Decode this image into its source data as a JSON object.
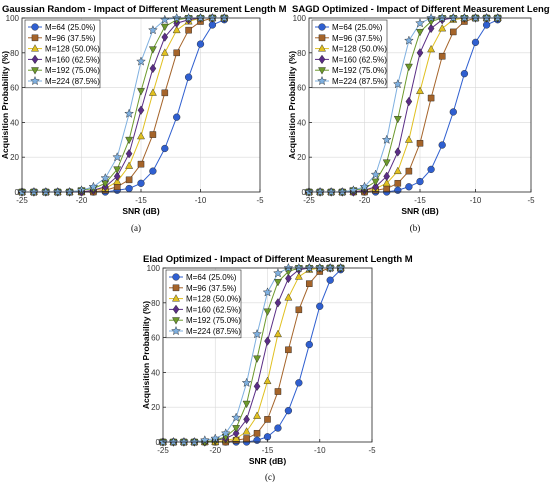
{
  "chart_data": [
    {
      "type": "line",
      "title": "Gaussian Random - Impact of Different Measurement Length M",
      "xlabel": "SNR (dB)",
      "ylabel": "Acquisition Probability (%)",
      "caption": "(a)",
      "xlim": [
        -25,
        -5
      ],
      "ylim": [
        0,
        100
      ],
      "xticks": [
        -25,
        -20,
        -15,
        -10,
        -5
      ],
      "yticks": [
        0,
        20,
        40,
        60,
        80,
        100
      ],
      "grid": true,
      "legend_position": "top-left",
      "x": [
        -25,
        -24,
        -23,
        -22,
        -21,
        -20,
        -19,
        -18,
        -17,
        -16,
        -15,
        -14,
        -13,
        -12,
        -11,
        -10,
        -9,
        -8
      ],
      "series": [
        {
          "name": "M=64 (25.0%)",
          "marker": "circle",
          "color": "#2f5fd0",
          "values": [
            0,
            0,
            0,
            0,
            0,
            0,
            0,
            0,
            1,
            2,
            5,
            12,
            25,
            43,
            66,
            85,
            96,
            99
          ]
        },
        {
          "name": "M=96 (37.5%)",
          "marker": "square",
          "color": "#a5642a",
          "values": [
            0,
            0,
            0,
            0,
            0,
            0,
            0,
            1,
            3,
            7,
            16,
            33,
            57,
            80,
            93,
            98,
            100,
            100
          ]
        },
        {
          "name": "M=128 (50.0%)",
          "marker": "triangle-up",
          "color": "#e0c020",
          "values": [
            0,
            0,
            0,
            0,
            0,
            0,
            1,
            2,
            6,
            15,
            32,
            57,
            80,
            93,
            98,
            100,
            100,
            100
          ]
        },
        {
          "name": "M=160 (62.5%)",
          "marker": "diamond",
          "color": "#5a2d86",
          "values": [
            0,
            0,
            0,
            0,
            0,
            0,
            1,
            3,
            9,
            22,
            47,
            71,
            89,
            97,
            99,
            100,
            100,
            100
          ]
        },
        {
          "name": "M=192 (75.0%)",
          "marker": "triangle-down",
          "color": "#6d9a2c",
          "values": [
            0,
            0,
            0,
            0,
            0,
            1,
            2,
            5,
            13,
            30,
            58,
            82,
            95,
            99,
            100,
            100,
            100,
            100
          ]
        },
        {
          "name": "M=224 (87.5%)",
          "marker": "star",
          "color": "#7fb0e0",
          "values": [
            0,
            0,
            0,
            0,
            0,
            1,
            3,
            8,
            20,
            45,
            75,
            93,
            99,
            100,
            100,
            100,
            100,
            100
          ]
        }
      ]
    },
    {
      "type": "line",
      "title": "SAGD Optimized - Impact of Different Measurement Length M",
      "xlabel": "SNR (dB)",
      "ylabel": "Acquisition Probability (%)",
      "caption": "(b)",
      "xlim": [
        -25,
        -5
      ],
      "ylim": [
        0,
        100
      ],
      "xticks": [
        -25,
        -20,
        -15,
        -10,
        -5
      ],
      "yticks": [
        0,
        20,
        40,
        60,
        80,
        100
      ],
      "grid": true,
      "legend_position": "top-left",
      "x": [
        -25,
        -24,
        -23,
        -22,
        -21,
        -20,
        -19,
        -18,
        -17,
        -16,
        -15,
        -14,
        -13,
        -12,
        -11,
        -10,
        -9,
        -8
      ],
      "series": [
        {
          "name": "M=64 (25.0%)",
          "marker": "circle",
          "color": "#2f5fd0",
          "values": [
            0,
            0,
            0,
            0,
            0,
            0,
            0,
            0,
            1,
            3,
            6,
            13,
            27,
            46,
            68,
            86,
            96,
            99
          ]
        },
        {
          "name": "M=96 (37.5%)",
          "marker": "square",
          "color": "#a5642a",
          "values": [
            0,
            0,
            0,
            0,
            0,
            0,
            1,
            2,
            5,
            12,
            28,
            54,
            78,
            92,
            98,
            100,
            100,
            100
          ]
        },
        {
          "name": "M=128 (50.0%)",
          "marker": "triangle-up",
          "color": "#e0c020",
          "values": [
            0,
            0,
            0,
            0,
            0,
            1,
            2,
            5,
            12,
            30,
            58,
            82,
            94,
            99,
            100,
            100,
            100,
            100
          ]
        },
        {
          "name": "M=160 (62.5%)",
          "marker": "diamond",
          "color": "#5a2d86",
          "values": [
            0,
            0,
            0,
            0,
            0,
            1,
            3,
            9,
            23,
            52,
            80,
            94,
            99,
            100,
            100,
            100,
            100,
            100
          ]
        },
        {
          "name": "M=192 (75.0%)",
          "marker": "triangle-down",
          "color": "#6d9a2c",
          "values": [
            0,
            0,
            0,
            0,
            1,
            2,
            6,
            17,
            42,
            72,
            92,
            98,
            100,
            100,
            100,
            100,
            100,
            100
          ]
        },
        {
          "name": "M=224 (87.5%)",
          "marker": "star",
          "color": "#7fb0e0",
          "values": [
            0,
            0,
            0,
            0,
            1,
            3,
            10,
            30,
            62,
            87,
            97,
            100,
            100,
            100,
            100,
            100,
            100,
            100
          ]
        }
      ]
    },
    {
      "type": "line",
      "title": "Elad Optimized - Impact of Different Measurement Length M",
      "xlabel": "SNR (dB)",
      "ylabel": "Acquisition Probability (%)",
      "caption": "(c)",
      "xlim": [
        -25,
        -5
      ],
      "ylim": [
        0,
        100
      ],
      "xticks": [
        -25,
        -20,
        -15,
        -10,
        -5
      ],
      "yticks": [
        0,
        20,
        40,
        60,
        80,
        100
      ],
      "grid": true,
      "legend_position": "top-left",
      "x": [
        -25,
        -24,
        -23,
        -22,
        -21,
        -20,
        -19,
        -18,
        -17,
        -16,
        -15,
        -14,
        -13,
        -12,
        -11,
        -10,
        -9,
        -8
      ],
      "series": [
        {
          "name": "M=64 (25.0%)",
          "marker": "circle",
          "color": "#2f5fd0",
          "values": [
            0,
            0,
            0,
            0,
            0,
            0,
            0,
            0,
            0,
            1,
            3,
            8,
            18,
            34,
            56,
            78,
            93,
            99
          ]
        },
        {
          "name": "M=96 (37.5%)",
          "marker": "square",
          "color": "#a5642a",
          "values": [
            0,
            0,
            0,
            0,
            0,
            0,
            0,
            1,
            2,
            5,
            13,
            29,
            53,
            76,
            91,
            98,
            100,
            100
          ]
        },
        {
          "name": "M=128 (50.0%)",
          "marker": "triangle-up",
          "color": "#e0c020",
          "values": [
            0,
            0,
            0,
            0,
            0,
            0,
            1,
            2,
            6,
            15,
            35,
            62,
            83,
            95,
            99,
            100,
            100,
            100
          ]
        },
        {
          "name": "M=160 (62.5%)",
          "marker": "diamond",
          "color": "#5a2d86",
          "values": [
            0,
            0,
            0,
            0,
            0,
            1,
            2,
            5,
            13,
            32,
            58,
            80,
            94,
            99,
            100,
            100,
            100,
            100
          ]
        },
        {
          "name": "M=192 (75.0%)",
          "marker": "triangle-down",
          "color": "#6d9a2c",
          "values": [
            0,
            0,
            0,
            0,
            0,
            1,
            3,
            8,
            22,
            48,
            75,
            92,
            98,
            100,
            100,
            100,
            100,
            100
          ]
        },
        {
          "name": "M=224 (87.5%)",
          "marker": "star",
          "color": "#7fb0e0",
          "values": [
            0,
            0,
            0,
            0,
            1,
            2,
            5,
            14,
            34,
            62,
            86,
            97,
            100,
            100,
            100,
            100,
            100,
            100
          ]
        }
      ]
    }
  ]
}
